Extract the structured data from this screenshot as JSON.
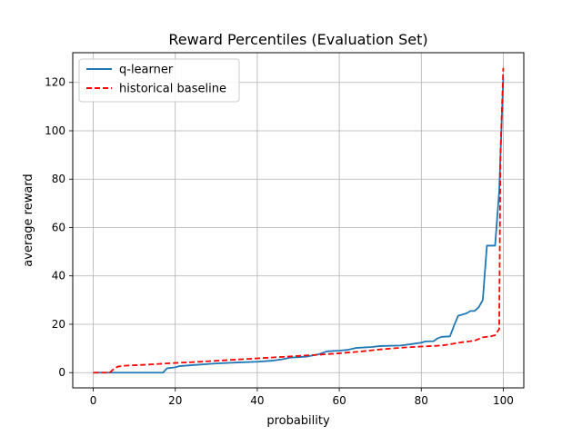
{
  "chart_data": {
    "type": "line",
    "title": "Reward Percentiles (Evaluation Set)",
    "xlabel": "probability",
    "ylabel": "average reward",
    "xlim": [
      -5,
      105
    ],
    "ylim": [
      -6.3,
      132.3
    ],
    "x_ticks": [
      0,
      20,
      40,
      60,
      80,
      100
    ],
    "y_ticks": [
      0,
      20,
      40,
      60,
      80,
      100,
      120
    ],
    "grid": true,
    "legend_position": "top-left",
    "series": [
      {
        "name": "q-learner",
        "color": "#1f77b4",
        "style": "solid",
        "points": [
          [
            0,
            0
          ],
          [
            5,
            0
          ],
          [
            10,
            0
          ],
          [
            15,
            0
          ],
          [
            17,
            0
          ],
          [
            18,
            1.8
          ],
          [
            20,
            2.2
          ],
          [
            21,
            2.7
          ],
          [
            25,
            3.2
          ],
          [
            30,
            3.8
          ],
          [
            35,
            4.2
          ],
          [
            40,
            4.5
          ],
          [
            44,
            5.0
          ],
          [
            46,
            5.5
          ],
          [
            48,
            6.2
          ],
          [
            50,
            6.4
          ],
          [
            52,
            6.6
          ],
          [
            55,
            7.6
          ],
          [
            57,
            8.8
          ],
          [
            60,
            9.1
          ],
          [
            62,
            9.4
          ],
          [
            64,
            10.2
          ],
          [
            68,
            10.6
          ],
          [
            70,
            11
          ],
          [
            75,
            11.2
          ],
          [
            78,
            11.9
          ],
          [
            80,
            12.4
          ],
          [
            81,
            12.9
          ],
          [
            83,
            13
          ],
          [
            84,
            14.2
          ],
          [
            85,
            14.8
          ],
          [
            87,
            15
          ],
          [
            88,
            19.5
          ],
          [
            89,
            23.5
          ],
          [
            91,
            24.5
          ],
          [
            92,
            25.5
          ],
          [
            93,
            25.5
          ],
          [
            94,
            27
          ],
          [
            95,
            30
          ],
          [
            96,
            52.5
          ],
          [
            98,
            52.5
          ],
          [
            99,
            75
          ],
          [
            100,
            122
          ]
        ]
      },
      {
        "name": "historical baseline",
        "color": "#ff0000",
        "style": "dashed",
        "points": [
          [
            0,
            0
          ],
          [
            3,
            0
          ],
          [
            4,
            0
          ],
          [
            5,
            1.5
          ],
          [
            6,
            2.5
          ],
          [
            8,
            2.9
          ],
          [
            12,
            3.2
          ],
          [
            16,
            3.6
          ],
          [
            20,
            4
          ],
          [
            25,
            4.4
          ],
          [
            30,
            4.9
          ],
          [
            35,
            5.4
          ],
          [
            40,
            5.9
          ],
          [
            45,
            6.4
          ],
          [
            50,
            6.9
          ],
          [
            55,
            7.4
          ],
          [
            60,
            8
          ],
          [
            65,
            8.7
          ],
          [
            70,
            9.6
          ],
          [
            75,
            10.3
          ],
          [
            80,
            10.8
          ],
          [
            85,
            11.2
          ],
          [
            88,
            12
          ],
          [
            90,
            12.6
          ],
          [
            93,
            13.2
          ],
          [
            95,
            14.6
          ],
          [
            97,
            15
          ],
          [
            98,
            15.5
          ],
          [
            99,
            18
          ],
          [
            99.3,
            90
          ],
          [
            100,
            126
          ]
        ]
      }
    ]
  }
}
